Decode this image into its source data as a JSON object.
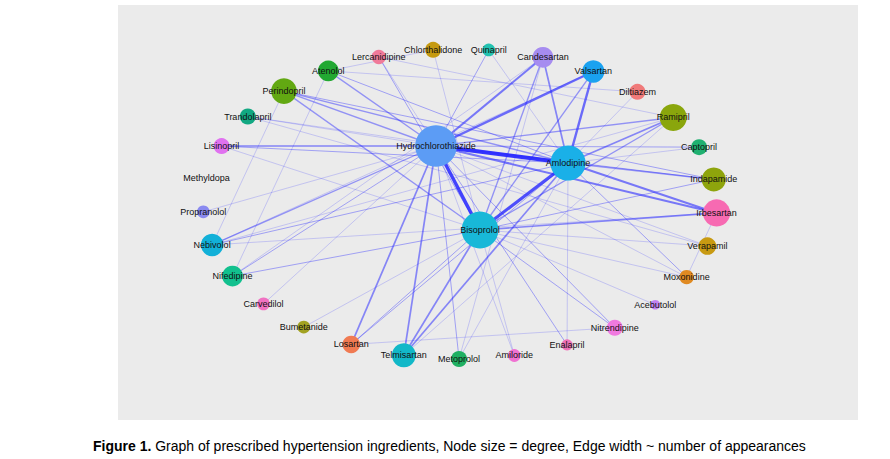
{
  "chart_data": {
    "type": "graph",
    "caption_label": "Figure 1.",
    "caption": "Graph of prescribed hypertension ingredients, Node size = degree, Edge width ~ number of appearances",
    "nodes": [
      {
        "name": "Chlorthalidone",
        "degree": 10,
        "color": "#c59a10"
      },
      {
        "name": "Quinapril",
        "degree": 8,
        "color": "#22c2b0"
      },
      {
        "name": "Candesartan",
        "degree": 13,
        "color": "#a68cf0"
      },
      {
        "name": "Valsartan",
        "degree": 14,
        "color": "#1aa2f0"
      },
      {
        "name": "Diltiazem",
        "degree": 10,
        "color": "#f07a7a"
      },
      {
        "name": "Ramipril",
        "degree": 17,
        "color": "#8aa60c"
      },
      {
        "name": "Captopril",
        "degree": 10,
        "color": "#1fb070"
      },
      {
        "name": "Indapamide",
        "degree": 15,
        "color": "#8ea40c"
      },
      {
        "name": "Irbesartan",
        "degree": 17,
        "color": "#f76ab2"
      },
      {
        "name": "Verapamil",
        "degree": 11,
        "color": "#c89a12"
      },
      {
        "name": "Moxonidine",
        "degree": 9,
        "color": "#e08a22"
      },
      {
        "name": "Acebutolol",
        "degree": 6,
        "color": "#c282f0"
      },
      {
        "name": "Nitrendipine",
        "degree": 10,
        "color": "#f07ae0"
      },
      {
        "name": "Enalapril",
        "degree": 7,
        "color": "#f072b8"
      },
      {
        "name": "Amiloride",
        "degree": 8,
        "color": "#f072d2"
      },
      {
        "name": "Metoprolol",
        "degree": 10,
        "color": "#20b062"
      },
      {
        "name": "Telmisartan",
        "degree": 15,
        "color": "#12b8c8"
      },
      {
        "name": "Losartan",
        "degree": 11,
        "color": "#f07a52"
      },
      {
        "name": "Bumetanide",
        "degree": 8,
        "color": "#a2a222"
      },
      {
        "name": "Carvedilol",
        "degree": 8,
        "color": "#f072c2"
      },
      {
        "name": "Nifedipine",
        "degree": 13,
        "color": "#12c08e"
      },
      {
        "name": "Nebivolol",
        "degree": 14,
        "color": "#12b0d8"
      },
      {
        "name": "Propranolol",
        "degree": 8,
        "color": "#8a8af0"
      },
      {
        "name": "Methyldopa",
        "degree": 0,
        "color": "#6aa0f0"
      },
      {
        "name": "Lisinopril",
        "degree": 10,
        "color": "#e072f0"
      },
      {
        "name": "Trandolapril",
        "degree": 10,
        "color": "#12a882"
      },
      {
        "name": "Perindopril",
        "degree": 16,
        "color": "#62a812"
      },
      {
        "name": "Atenolol",
        "degree": 13,
        "color": "#22a832"
      },
      {
        "name": "Lercanidipine",
        "degree": 9,
        "color": "#f07a9a"
      },
      {
        "name": "Hydrochlorothiazide",
        "degree": 26,
        "color": "#5c9cf5"
      },
      {
        "name": "Amlodipine",
        "degree": 22,
        "color": "#1ab0e8"
      },
      {
        "name": "Bisoprolol",
        "degree": 23,
        "color": "#18b8d8"
      }
    ],
    "edges": [
      {
        "source": "Hydrochlorothiazide",
        "target": "Amlodipine",
        "weight": 10
      },
      {
        "source": "Hydrochlorothiazide",
        "target": "Bisoprolol",
        "weight": 9
      },
      {
        "source": "Hydrochlorothiazide",
        "target": "Valsartan",
        "weight": 6
      },
      {
        "source": "Hydrochlorothiazide",
        "target": "Candesartan",
        "weight": 5
      },
      {
        "source": "Hydrochlorothiazide",
        "target": "Irbesartan",
        "weight": 5
      },
      {
        "source": "Hydrochlorothiazide",
        "target": "Lisinopril",
        "weight": 4
      },
      {
        "source": "Hydrochlorothiazide",
        "target": "Nebivolol",
        "weight": 3
      },
      {
        "source": "Hydrochlorothiazide",
        "target": "Losartan",
        "weight": 4
      },
      {
        "source": "Hydrochlorothiazide",
        "target": "Telmisartan",
        "weight": 4
      },
      {
        "source": "Hydrochlorothiazide",
        "target": "Ramipril",
        "weight": 3
      },
      {
        "source": "Hydrochlorothiazide",
        "target": "Perindopril",
        "weight": 3
      },
      {
        "source": "Hydrochlorothiazide",
        "target": "Atenolol",
        "weight": 3
      },
      {
        "source": "Hydrochlorothiazide",
        "target": "Indapamide",
        "weight": 2
      },
      {
        "source": "Hydrochlorothiazide",
        "target": "Metoprolol",
        "weight": 2
      },
      {
        "source": "Hydrochlorothiazide",
        "target": "Quinapril",
        "weight": 2
      },
      {
        "source": "Hydrochlorothiazide",
        "target": "Lercanidipine",
        "weight": 1
      },
      {
        "source": "Hydrochlorothiazide",
        "target": "Trandolapril",
        "weight": 1
      },
      {
        "source": "Hydrochlorothiazide",
        "target": "Captopril",
        "weight": 2
      },
      {
        "source": "Hydrochlorothiazide",
        "target": "Amiloride",
        "weight": 1
      },
      {
        "source": "Hydrochlorothiazide",
        "target": "Enalapril",
        "weight": 2
      },
      {
        "source": "Hydrochlorothiazide",
        "target": "Nitrendipine",
        "weight": 2
      },
      {
        "source": "Hydrochlorothiazide",
        "target": "Moxonidine",
        "weight": 1
      },
      {
        "source": "Hydrochlorothiazide",
        "target": "Verapamil",
        "weight": 1
      },
      {
        "source": "Hydrochlorothiazide",
        "target": "Nifedipine",
        "weight": 2
      },
      {
        "source": "Hydrochlorothiazide",
        "target": "Propranolol",
        "weight": 1
      },
      {
        "source": "Hydrochlorothiazide",
        "target": "Carvedilol",
        "weight": 1
      },
      {
        "source": "Amlodipine",
        "target": "Bisoprolol",
        "weight": 8
      },
      {
        "source": "Amlodipine",
        "target": "Valsartan",
        "weight": 6
      },
      {
        "source": "Amlodipine",
        "target": "Candesartan",
        "weight": 4
      },
      {
        "source": "Amlodipine",
        "target": "Irbesartan",
        "weight": 5
      },
      {
        "source": "Amlodipine",
        "target": "Ramipril",
        "weight": 4
      },
      {
        "source": "Amlodipine",
        "target": "Indapamide",
        "weight": 3
      },
      {
        "source": "Amlodipine",
        "target": "Telmisartan",
        "weight": 4
      },
      {
        "source": "Amlodipine",
        "target": "Perindopril",
        "weight": 3
      },
      {
        "source": "Amlodipine",
        "target": "Atenolol",
        "weight": 2
      },
      {
        "source": "Amlodipine",
        "target": "Lisinopril",
        "weight": 2
      },
      {
        "source": "Amlodipine",
        "target": "Nebivolol",
        "weight": 2
      },
      {
        "source": "Amlodipine",
        "target": "Losartan",
        "weight": 2
      },
      {
        "source": "Amlodipine",
        "target": "Captopril",
        "weight": 1
      },
      {
        "source": "Amlodipine",
        "target": "Diltiazem",
        "weight": 1
      },
      {
        "source": "Amlodipine",
        "target": "Moxonidine",
        "weight": 2
      },
      {
        "source": "Amlodipine",
        "target": "Metoprolol",
        "weight": 1
      },
      {
        "source": "Amlodipine",
        "target": "Trandolapril",
        "weight": 1
      },
      {
        "source": "Amlodipine",
        "target": "Enalapril",
        "weight": 1
      },
      {
        "source": "Amlodipine",
        "target": "Quinapril",
        "weight": 1
      },
      {
        "source": "Bisoprolol",
        "target": "Irbesartan",
        "weight": 4
      },
      {
        "source": "Bisoprolol",
        "target": "Telmisartan",
        "weight": 4
      },
      {
        "source": "Bisoprolol",
        "target": "Ramipril",
        "weight": 3
      },
      {
        "source": "Bisoprolol",
        "target": "Valsartan",
        "weight": 3
      },
      {
        "source": "Bisoprolol",
        "target": "Candesartan",
        "weight": 3
      },
      {
        "source": "Bisoprolol",
        "target": "Perindopril",
        "weight": 3
      },
      {
        "source": "Bisoprolol",
        "target": "Indapamide",
        "weight": 2
      },
      {
        "source": "Bisoprolol",
        "target": "Nifedipine",
        "weight": 2
      },
      {
        "source": "Bisoprolol",
        "target": "Lercanidipine",
        "weight": 2
      },
      {
        "source": "Bisoprolol",
        "target": "Losartan",
        "weight": 2
      },
      {
        "source": "Bisoprolol",
        "target": "Verapamil",
        "weight": 1
      },
      {
        "source": "Bisoprolol",
        "target": "Moxonidine",
        "weight": 1
      },
      {
        "source": "Bisoprolol",
        "target": "Nitrendipine",
        "weight": 2
      },
      {
        "source": "Bisoprolol",
        "target": "Chlorthalidone",
        "weight": 1
      },
      {
        "source": "Bisoprolol",
        "target": "Lisinopril",
        "weight": 1
      },
      {
        "source": "Bisoprolol",
        "target": "Amiloride",
        "weight": 1
      },
      {
        "source": "Bisoprolol",
        "target": "Acebutolol",
        "weight": 1
      },
      {
        "source": "Bisoprolol",
        "target": "Bumetanide",
        "weight": 1
      },
      {
        "source": "Perindopril",
        "target": "Indapamide",
        "weight": 2
      },
      {
        "source": "Ramipril",
        "target": "Lercanidipine",
        "weight": 1
      },
      {
        "source": "Atenolol",
        "target": "Nifedipine",
        "weight": 1
      },
      {
        "source": "Atenolol",
        "target": "Chlorthalidone",
        "weight": 1
      },
      {
        "source": "Nebivolol",
        "target": "Ramipril",
        "weight": 1
      },
      {
        "source": "Nebivolol",
        "target": "Irbesartan",
        "weight": 1
      },
      {
        "source": "Telmisartan",
        "target": "Ramipril",
        "weight": 1
      },
      {
        "source": "Candesartan",
        "target": "Nifedipine",
        "weight": 1
      },
      {
        "source": "Valsartan",
        "target": "Nebivolol",
        "weight": 1
      },
      {
        "source": "Irbesartan",
        "target": "Moxonidine",
        "weight": 1
      },
      {
        "source": "Verapamil",
        "target": "Trandolapril",
        "weight": 1
      },
      {
        "source": "Diltiazem",
        "target": "Atenolol",
        "weight": 1
      },
      {
        "source": "Perindopril",
        "target": "Nebivolol",
        "weight": 1
      },
      {
        "source": "Losartan",
        "target": "Nitrendipine",
        "weight": 1
      },
      {
        "source": "Metoprolol",
        "target": "Candesartan",
        "weight": 1
      }
    ]
  }
}
